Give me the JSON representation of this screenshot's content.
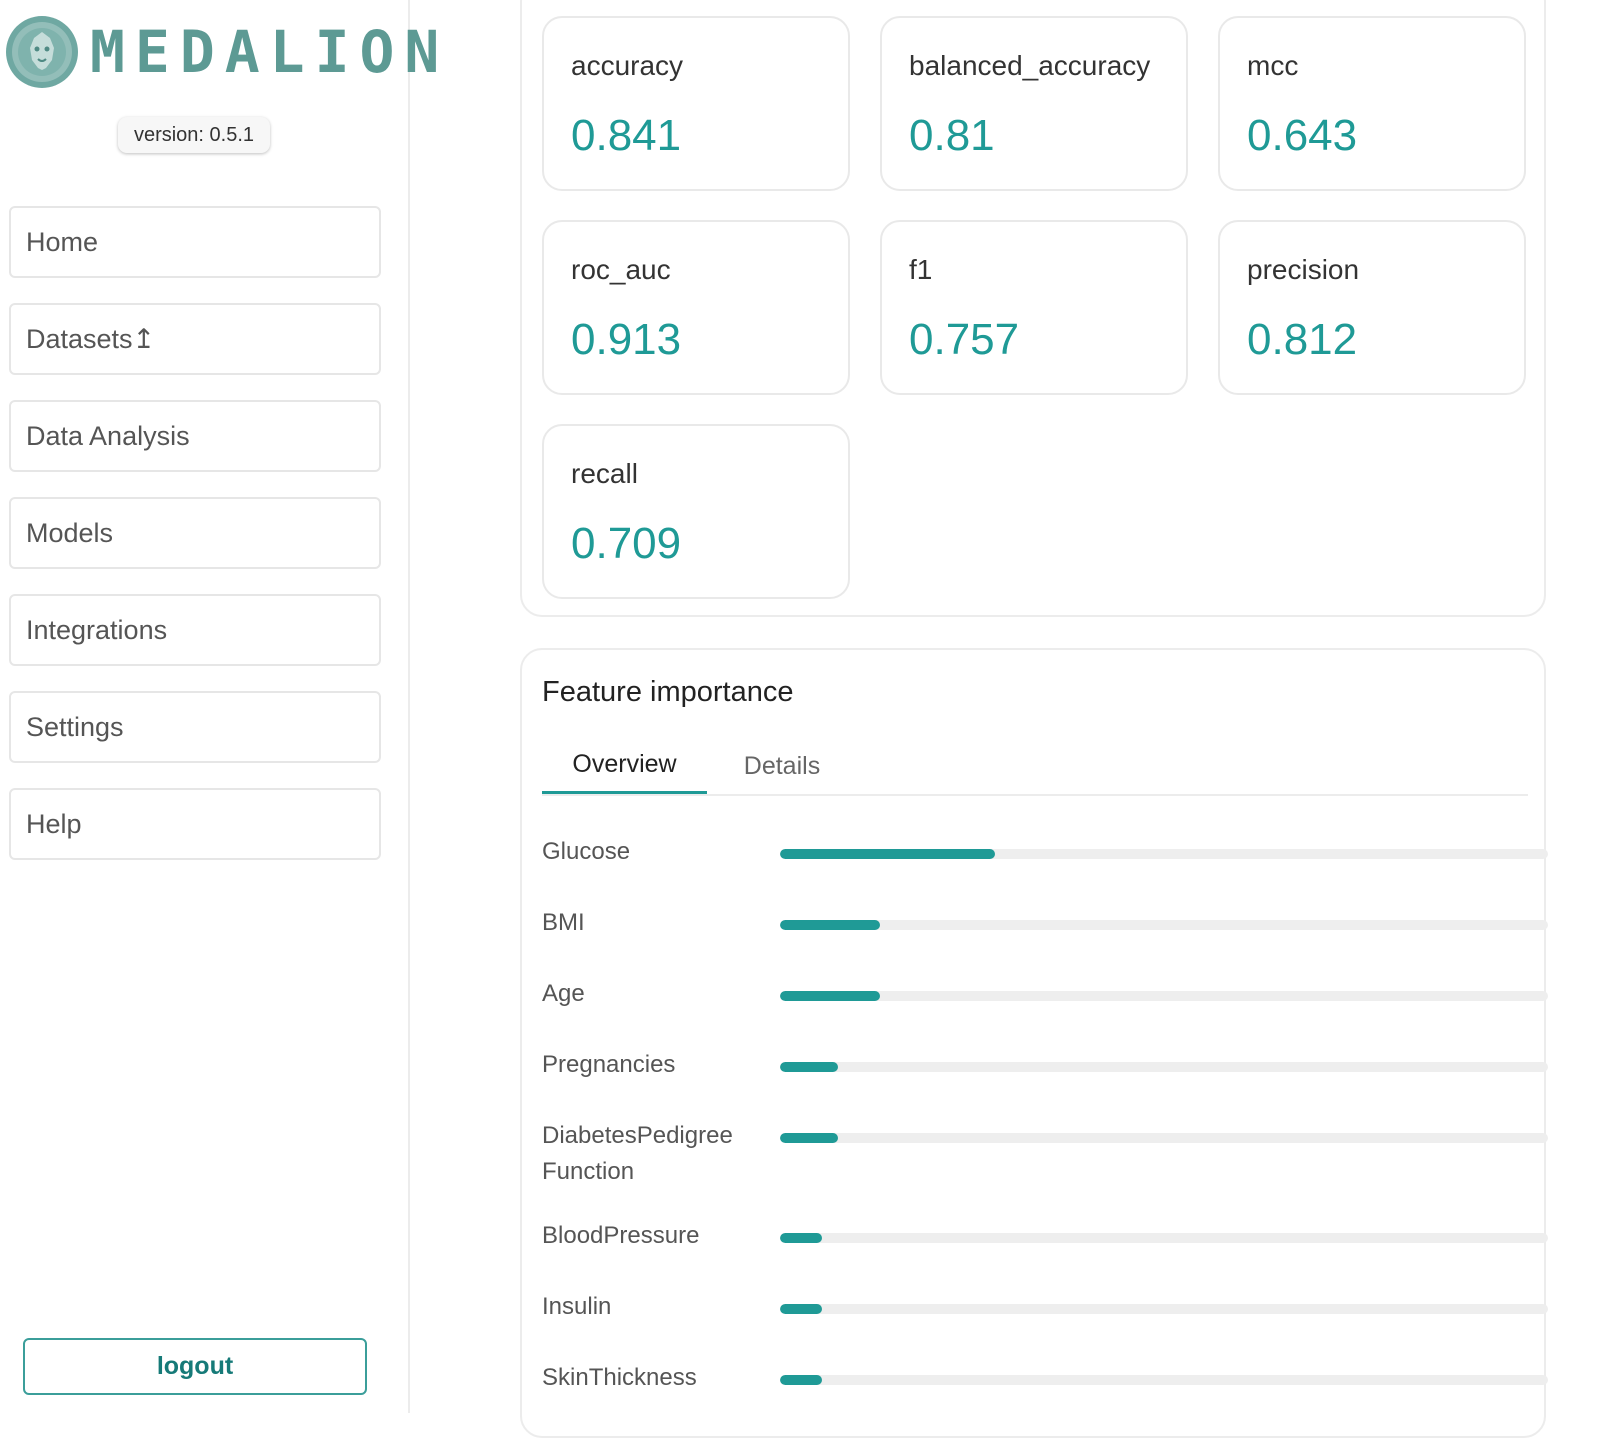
{
  "app": {
    "name": "MEDALION",
    "version": "version: 0.5.1"
  },
  "sidebar": {
    "items": [
      {
        "key": "home",
        "label": "Home"
      },
      {
        "key": "datasets",
        "label": "Datasets↥"
      },
      {
        "key": "data-analysis",
        "label": "Data Analysis"
      },
      {
        "key": "models",
        "label": "Models"
      },
      {
        "key": "integrations",
        "label": "Integrations"
      },
      {
        "key": "settings",
        "label": "Settings"
      },
      {
        "key": "help",
        "label": "Help"
      }
    ],
    "logout_label": "logout"
  },
  "metrics": [
    {
      "label": "accuracy",
      "value": "0.841"
    },
    {
      "label": "balanced_accuracy",
      "value": "0.81"
    },
    {
      "label": "mcc",
      "value": "0.643"
    },
    {
      "label": "roc_auc",
      "value": "0.913"
    },
    {
      "label": "f1",
      "value": "0.757"
    },
    {
      "label": "precision",
      "value": "0.812"
    },
    {
      "label": "recall",
      "value": "0.709"
    }
  ],
  "feature_importance": {
    "title": "Feature importance",
    "tabs": [
      {
        "label": "Overview",
        "active": true
      },
      {
        "label": "Details",
        "active": false
      }
    ],
    "features": [
      {
        "name": "Glucose",
        "importance": 0.28
      },
      {
        "name": "BMI",
        "importance": 0.13
      },
      {
        "name": "Age",
        "importance": 0.13
      },
      {
        "name": "Pregnancies",
        "importance": 0.075
      },
      {
        "name": "DiabetesPedigree Function",
        "importance": 0.075
      },
      {
        "name": "BloodPressure",
        "importance": 0.055
      },
      {
        "name": "Insulin",
        "importance": 0.055
      },
      {
        "name": "SkinThickness",
        "importance": 0.055
      }
    ]
  },
  "colors": {
    "accent": "#1f9a96",
    "logo": "#5d9a94",
    "track": "#eeeeee"
  }
}
